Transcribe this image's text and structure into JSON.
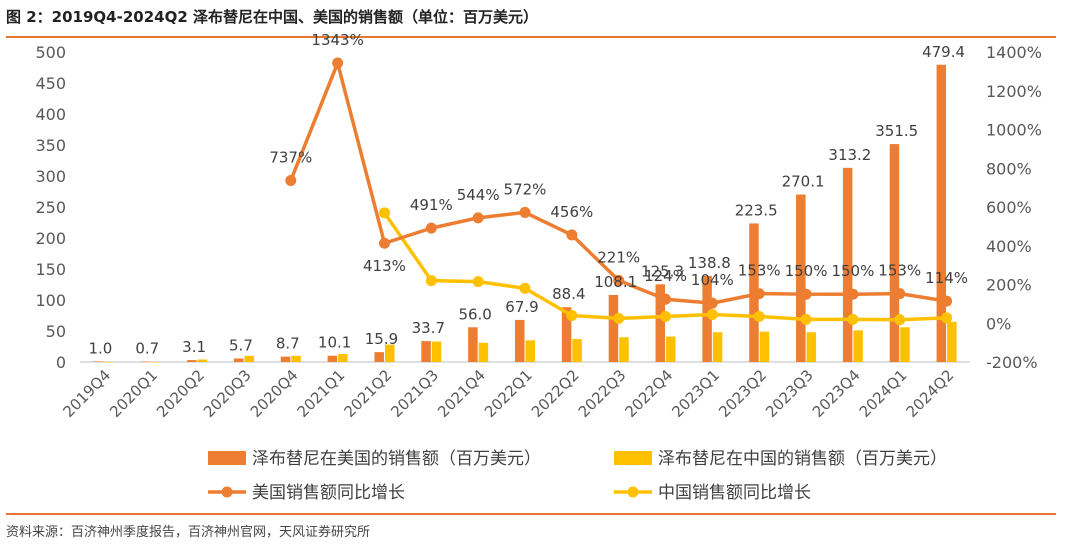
{
  "figure": {
    "title": "图 2：2019Q4-2024Q2 泽布替尼在中国、美国的销售额（单位：百万美元）",
    "source": "资料来源：百济神州季度报告，百济神州官网，天风证券研究所"
  },
  "colors": {
    "us_bar": "#ED7D31",
    "cn_bar": "#FFC000",
    "accent_rule": "#E8762C"
  },
  "chart_data": {
    "type": "bar",
    "categories": [
      "2019Q4",
      "2020Q1",
      "2020Q2",
      "2020Q3",
      "2020Q4",
      "2021Q1",
      "2021Q2",
      "2021Q3",
      "2021Q4",
      "2022Q1",
      "2022Q2",
      "2022Q3",
      "2022Q4",
      "2023Q1",
      "2023Q2",
      "2023Q3",
      "2023Q4",
      "2024Q1",
      "2024Q2"
    ],
    "y_left": {
      "ticks": [
        "0",
        "50",
        "100",
        "150",
        "200",
        "250",
        "300",
        "350",
        "400",
        "450",
        "500"
      ],
      "range": [
        0,
        500
      ]
    },
    "y_right": {
      "ticks": [
        "-200%",
        "0%",
        "200%",
        "400%",
        "600%",
        "800%",
        "1000%",
        "1200%",
        "1400%"
      ],
      "range": [
        -200,
        1400
      ]
    },
    "series": [
      {
        "name": "泽布替尼在美国的销售额（百万美元）",
        "type": "bar",
        "axis": "left",
        "values": [
          1.0,
          0.7,
          3.1,
          5.7,
          8.7,
          10.1,
          15.9,
          33.7,
          56.0,
          67.9,
          88.4,
          108.1,
          125.3,
          138.8,
          223.5,
          270.1,
          313.2,
          351.5,
          479.4
        ],
        "labels": [
          "1.0",
          "0.7",
          "3.1",
          "5.7",
          "8.7",
          "10.1",
          "15.9",
          "33.7",
          "56.0",
          "67.9",
          "88.4",
          "108.1",
          "125.3",
          "138.8",
          "223.5",
          "270.1",
          "313.2",
          "351.5",
          "479.4"
        ]
      },
      {
        "name": "泽布替尼在中国的销售额（百万美元）",
        "type": "bar",
        "axis": "left",
        "values": [
          0,
          0,
          4,
          10,
          10,
          13,
          28,
          33,
          31,
          35,
          37,
          40,
          41,
          48,
          49,
          48,
          51,
          56,
          65
        ]
      },
      {
        "name": "美国销售额同比增长",
        "type": "line",
        "axis": "right",
        "values": [
          null,
          null,
          null,
          null,
          737,
          1343,
          413,
          491,
          544,
          572,
          456,
          221,
          124,
          104,
          153,
          150,
          150,
          153,
          114
        ],
        "labels": [
          "",
          "",
          "",
          "",
          "737%",
          "1343%",
          "413%",
          "491%",
          "544%",
          "572%",
          "456%",
          "221%",
          "124%",
          "104%",
          "153%",
          "150%",
          "150%",
          "153%",
          "114%"
        ]
      },
      {
        "name": "中国销售额同比增长",
        "type": "line",
        "axis": "right",
        "values": [
          null,
          null,
          null,
          null,
          null,
          null,
          570,
          220,
          215,
          180,
          40,
          25,
          35,
          45,
          35,
          20,
          20,
          18,
          28
        ]
      }
    ],
    "legend_position": "bottom",
    "grid": false
  }
}
